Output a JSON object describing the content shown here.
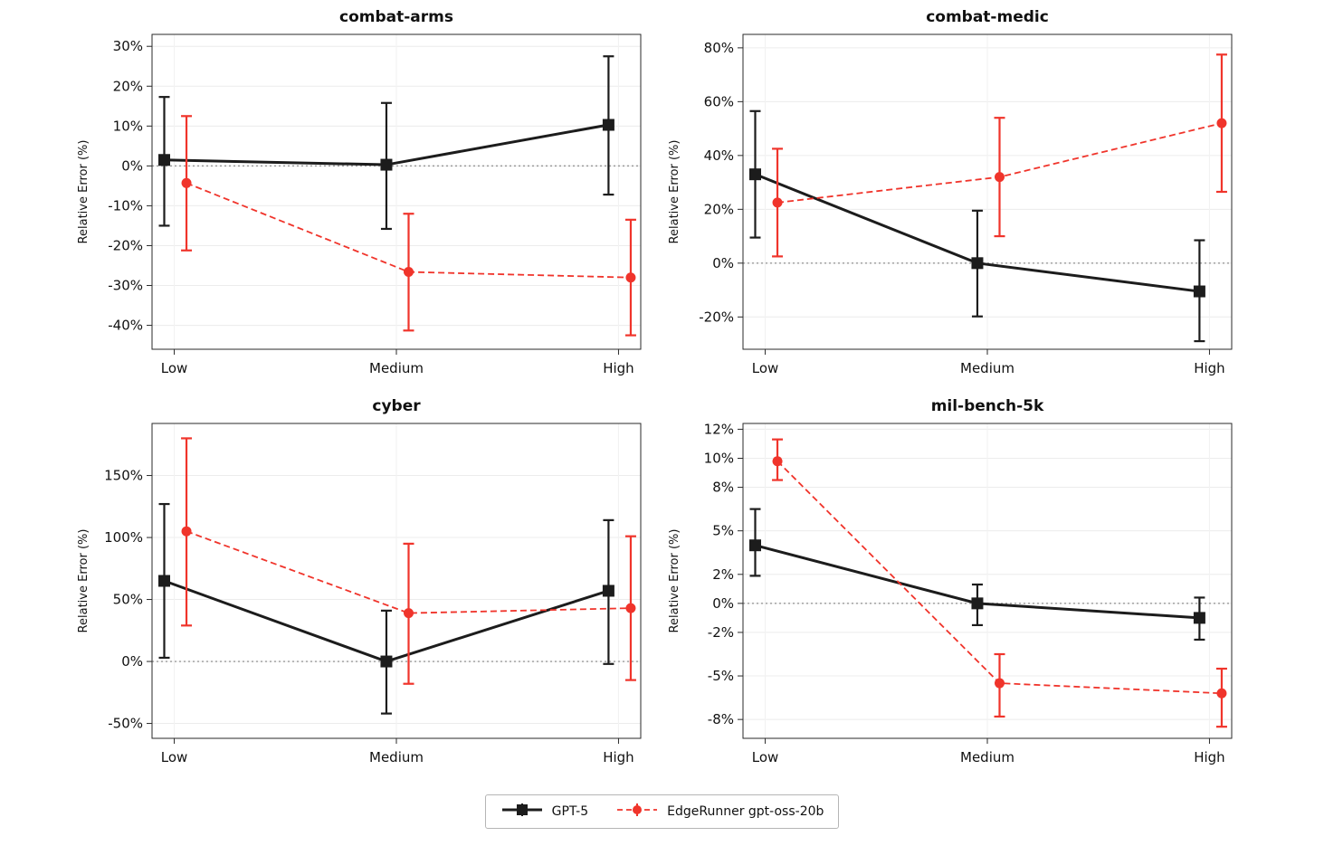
{
  "page": {
    "background": "#ffffff"
  },
  "colors": {
    "series1": "#1c1c1c",
    "series2": "#f0342b",
    "zero_line": "#9a9a9a",
    "grid": "#ececec"
  },
  "legend": {
    "items": [
      {
        "label": "GPT-5",
        "color": "#1c1c1c",
        "marker": "square",
        "line": "solid"
      },
      {
        "label": "EdgeRunner gpt-oss-20b",
        "color": "#f0342b",
        "marker": "circle",
        "line": "dashed"
      }
    ]
  },
  "chart_data": [
    {
      "type": "line",
      "title": "combat-arms",
      "ylabel": "Relative Error (%)",
      "categories": [
        "Low",
        "Medium",
        "High"
      ],
      "ylim": [
        -46,
        33
      ],
      "yticks": [
        {
          "v": 30,
          "label": "30%"
        },
        {
          "v": 20,
          "label": "20%"
        },
        {
          "v": 10,
          "label": "10%"
        },
        {
          "v": 0,
          "label": "0%"
        },
        {
          "v": -10,
          "label": "-10%"
        },
        {
          "v": -20,
          "label": "-20%"
        },
        {
          "v": -30,
          "label": "-30%"
        },
        {
          "v": -40,
          "label": "-40%"
        }
      ],
      "series": [
        {
          "name": "GPT-5",
          "color": "#1c1c1c",
          "marker": "square",
          "line": "solid",
          "offset": -0.045,
          "values": [
            1.5,
            0.3,
            10.3
          ],
          "err_lo": [
            -15.0,
            -15.8,
            -7.2
          ],
          "err_hi": [
            17.3,
            15.8,
            27.5
          ]
        },
        {
          "name": "EdgeRunner gpt-oss-20b",
          "color": "#f0342b",
          "marker": "circle",
          "line": "dashed",
          "offset": 0.055,
          "values": [
            -4.3,
            -26.6,
            -28.0
          ],
          "err_lo": [
            -21.2,
            -41.3,
            -42.5
          ],
          "err_hi": [
            12.5,
            -12.0,
            -13.5
          ]
        }
      ]
    },
    {
      "type": "line",
      "title": "combat-medic",
      "ylabel": "Relative Error (%)",
      "categories": [
        "Low",
        "Medium",
        "High"
      ],
      "ylim": [
        -32,
        85
      ],
      "yticks": [
        {
          "v": 80,
          "label": "80%"
        },
        {
          "v": 60,
          "label": "60%"
        },
        {
          "v": 40,
          "label": "40%"
        },
        {
          "v": 20,
          "label": "20%"
        },
        {
          "v": 0,
          "label": "0%"
        },
        {
          "v": -20,
          "label": "-20%"
        }
      ],
      "series": [
        {
          "name": "GPT-5",
          "color": "#1c1c1c",
          "marker": "square",
          "line": "solid",
          "offset": -0.045,
          "values": [
            33.0,
            0.0,
            -10.5
          ],
          "err_lo": [
            9.5,
            -19.8,
            -29.0
          ],
          "err_hi": [
            56.5,
            19.5,
            8.5
          ]
        },
        {
          "name": "EdgeRunner gpt-oss-20b",
          "color": "#f0342b",
          "marker": "circle",
          "line": "dashed",
          "offset": 0.055,
          "values": [
            22.5,
            32.0,
            52.0
          ],
          "err_lo": [
            2.5,
            10.0,
            26.5
          ],
          "err_hi": [
            42.5,
            54.0,
            77.5
          ]
        }
      ]
    },
    {
      "type": "line",
      "title": "cyber",
      "ylabel": "Relative Error (%)",
      "categories": [
        "Low",
        "Medium",
        "High"
      ],
      "ylim": [
        -62,
        192
      ],
      "yticks": [
        {
          "v": 150,
          "label": "150%"
        },
        {
          "v": 100,
          "label": "100%"
        },
        {
          "v": 50,
          "label": "50%"
        },
        {
          "v": 0,
          "label": "0%"
        },
        {
          "v": -50,
          "label": "-50%"
        }
      ],
      "series": [
        {
          "name": "GPT-5",
          "color": "#1c1c1c",
          "marker": "square",
          "line": "solid",
          "offset": -0.045,
          "values": [
            65.0,
            0.0,
            57.0
          ],
          "err_lo": [
            3.0,
            -42.0,
            -2.0
          ],
          "err_hi": [
            127.0,
            41.0,
            114.0
          ]
        },
        {
          "name": "EdgeRunner gpt-oss-20b",
          "color": "#f0342b",
          "marker": "circle",
          "line": "dashed",
          "offset": 0.055,
          "values": [
            105.0,
            39.0,
            43.0
          ],
          "err_lo": [
            29.0,
            -18.0,
            -15.0
          ],
          "err_hi": [
            180.0,
            95.0,
            101.0
          ]
        }
      ]
    },
    {
      "type": "line",
      "title": "mil-bench-5k",
      "ylabel": "Relative Error (%)",
      "categories": [
        "Low",
        "Medium",
        "High"
      ],
      "ylim": [
        -9.3,
        12.4
      ],
      "yticks": [
        {
          "v": 12,
          "label": "12%"
        },
        {
          "v": 10,
          "label": "10%"
        },
        {
          "v": 8,
          "label": "8%"
        },
        {
          "v": 5,
          "label": "5%"
        },
        {
          "v": 2,
          "label": "2%"
        },
        {
          "v": 0,
          "label": "0%"
        },
        {
          "v": -2,
          "label": "-2%"
        },
        {
          "v": -5,
          "label": "-5%"
        },
        {
          "v": -8,
          "label": "-8%"
        }
      ],
      "series": [
        {
          "name": "GPT-5",
          "color": "#1c1c1c",
          "marker": "square",
          "line": "solid",
          "offset": -0.045,
          "values": [
            4.0,
            0.0,
            -1.0
          ],
          "err_lo": [
            1.9,
            -1.5,
            -2.5
          ],
          "err_hi": [
            6.5,
            1.3,
            0.4
          ]
        },
        {
          "name": "EdgeRunner gpt-oss-20b",
          "color": "#f0342b",
          "marker": "circle",
          "line": "dashed",
          "offset": 0.055,
          "values": [
            9.8,
            -5.5,
            -6.2
          ],
          "err_lo": [
            8.5,
            -7.8,
            -8.5
          ],
          "err_hi": [
            11.3,
            -3.5,
            -4.5
          ]
        }
      ]
    }
  ]
}
